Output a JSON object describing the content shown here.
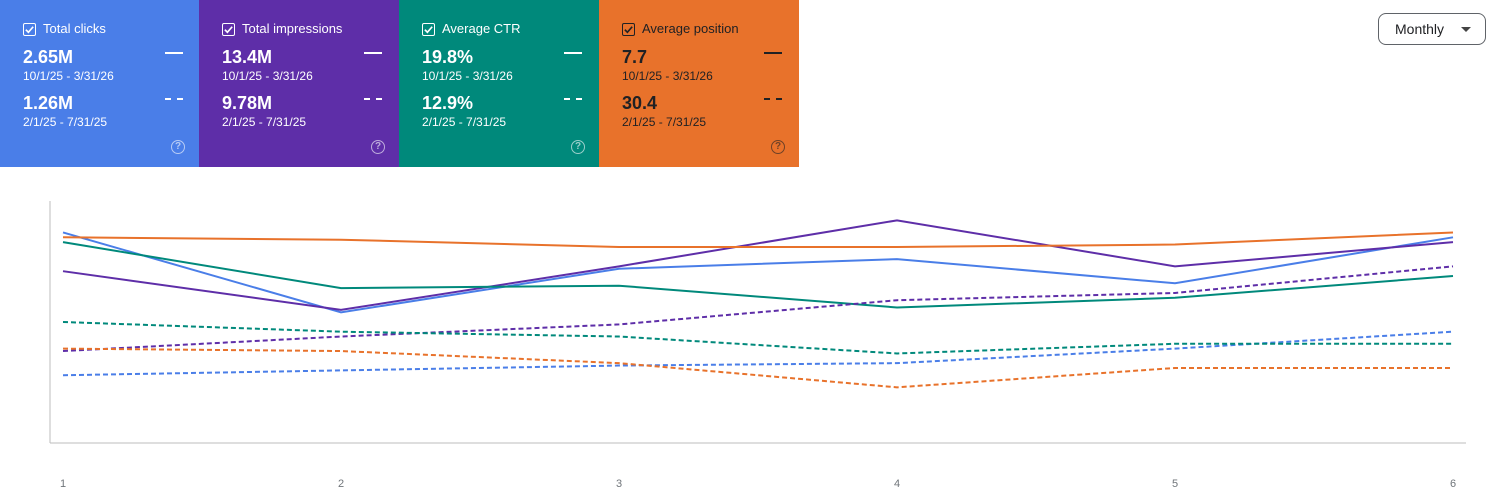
{
  "controls": {
    "period_label": "Monthly"
  },
  "cards": [
    {
      "title": "Total clicks",
      "color": "#4a7ee8",
      "current": {
        "value": "2.65M",
        "range": "10/1/25 - 3/31/26"
      },
      "previous": {
        "value": "1.26M",
        "range": "2/1/25 - 7/31/25"
      },
      "help": "?"
    },
    {
      "title": "Total impressions",
      "color": "#5e2ea8",
      "current": {
        "value": "13.4M",
        "range": "10/1/25 - 3/31/26"
      },
      "previous": {
        "value": "9.78M",
        "range": "2/1/25 - 7/31/25"
      },
      "help": "?"
    },
    {
      "title": "Average CTR",
      "color": "#00897b",
      "current": {
        "value": "19.8%",
        "range": "10/1/25 - 3/31/26"
      },
      "previous": {
        "value": "12.9%",
        "range": "2/1/25 - 7/31/25"
      },
      "help": "?"
    },
    {
      "title": "Average position",
      "color": "#e8722b",
      "text_color": "#202124",
      "current": {
        "value": "7.7",
        "range": "10/1/25 - 3/31/26"
      },
      "previous": {
        "value": "30.4",
        "range": "2/1/25 - 7/31/25"
      },
      "help": "?"
    }
  ],
  "chart_data": {
    "type": "line",
    "x": [
      1,
      2,
      3,
      4,
      5,
      6
    ],
    "ylim": [
      0,
      100
    ],
    "grid": false,
    "series": [
      {
        "metric": "clicks_current",
        "color": "#4a7ee8",
        "style": "solid",
        "values": [
          87,
          54,
          72,
          76,
          66,
          85
        ]
      },
      {
        "metric": "impressions_current",
        "color": "#5e2ea8",
        "style": "solid",
        "values": [
          71,
          55,
          73,
          92,
          73,
          83
        ]
      },
      {
        "metric": "ctr_current",
        "color": "#00897b",
        "style": "solid",
        "values": [
          83,
          64,
          65,
          56,
          60,
          69
        ]
      },
      {
        "metric": "position_current",
        "color": "#e8722b",
        "style": "solid",
        "values": [
          85,
          84,
          81,
          81,
          82,
          87
        ]
      },
      {
        "metric": "clicks_previous",
        "color": "#4a7ee8",
        "style": "dashed",
        "values": [
          28,
          30,
          32,
          33,
          39,
          46
        ]
      },
      {
        "metric": "impressions_previous",
        "color": "#5e2ea8",
        "style": "dashed",
        "values": [
          38,
          44,
          49,
          59,
          62,
          73
        ]
      },
      {
        "metric": "ctr_previous",
        "color": "#00897b",
        "style": "dashed",
        "values": [
          50,
          46,
          44,
          37,
          41,
          41
        ]
      },
      {
        "metric": "position_previous",
        "color": "#e8722b",
        "style": "dashed",
        "values": [
          39,
          38,
          33,
          23,
          31,
          31
        ]
      }
    ]
  }
}
